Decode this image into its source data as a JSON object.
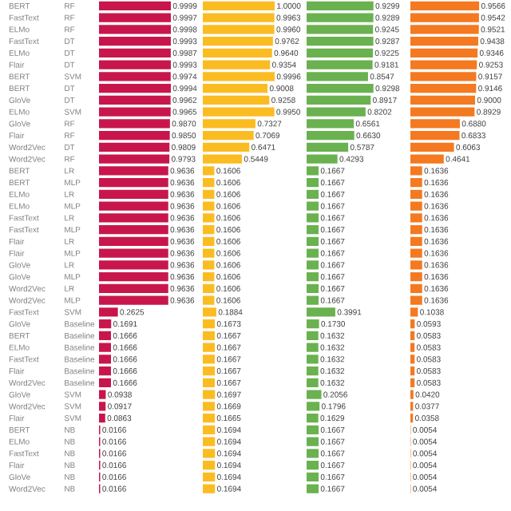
{
  "chart_data": [
    {
      "type": "bar",
      "orientation": "horizontal",
      "color": "#c8164c",
      "xlim": [
        0,
        1
      ],
      "categories": [
        "BERT",
        "FastText",
        "ELMo",
        "FastText",
        "ELMo",
        "Flair",
        "BERT",
        "BERT",
        "GloVe",
        "ELMo",
        "GloVe",
        "Flair",
        "Word2Vec",
        "Word2Vec",
        "BERT",
        "BERT",
        "ELMo",
        "ELMo",
        "FastText",
        "FastText",
        "Flair",
        "Flair",
        "GloVe",
        "GloVe",
        "Word2Vec",
        "Word2Vec",
        "FastText",
        "GloVe",
        "BERT",
        "ELMo",
        "FastText",
        "Flair",
        "Word2Vec",
        "GloVe",
        "Word2Vec",
        "Flair",
        "BERT",
        "ELMo",
        "FastText",
        "Flair",
        "GloVe",
        "Word2Vec"
      ],
      "annotations": [
        "RF",
        "RF",
        "RF",
        "DT",
        "DT",
        "DT",
        "SVM",
        "DT",
        "DT",
        "SVM",
        "RF",
        "RF",
        "DT",
        "RF",
        "LR",
        "MLP",
        "LR",
        "MLP",
        "LR",
        "MLP",
        "LR",
        "MLP",
        "LR",
        "MLP",
        "LR",
        "MLP",
        "SVM",
        "Baseline",
        "Baseline",
        "Baseline",
        "Baseline",
        "Baseline",
        "Baseline",
        "SVM",
        "SVM",
        "SVM",
        "NB",
        "NB",
        "NB",
        "NB",
        "NB",
        "NB"
      ],
      "values": [
        0.9999,
        0.9997,
        0.9998,
        0.9993,
        0.9987,
        0.9993,
        0.9974,
        0.9994,
        0.9962,
        0.9965,
        0.987,
        0.985,
        0.9809,
        0.9793,
        0.9636,
        0.9636,
        0.9636,
        0.9636,
        0.9636,
        0.9636,
        0.9636,
        0.9636,
        0.9636,
        0.9636,
        0.9636,
        0.9636,
        0.2625,
        0.1691,
        0.1666,
        0.1666,
        0.1666,
        0.1666,
        0.1666,
        0.0938,
        0.0917,
        0.0863,
        0.0166,
        0.0166,
        0.0166,
        0.0166,
        0.0166,
        0.0166
      ],
      "value_labels": [
        "0.9999",
        "0.9997",
        "0.9998",
        "0.9993",
        "0.9987",
        "0.9993",
        "0.9974",
        "0.9994",
        "0.9962",
        "0.9965",
        "0.9870",
        "0.9850",
        "0.9809",
        "0.9793",
        "0.9636",
        "0.9636",
        "0.9636",
        "0.9636",
        "0.9636",
        "0.9636",
        "0.9636",
        "0.9636",
        "0.9636",
        "0.9636",
        "0.9636",
        "0.9636",
        "0.2625",
        "0.1691",
        "0.1666",
        "0.1666",
        "0.1666",
        "0.1666",
        "0.1666",
        "0.0938",
        "0.0917",
        "0.0863",
        "0.0166",
        "0.0166",
        "0.0166",
        "0.0166",
        "0.0166",
        "0.0166"
      ]
    },
    {
      "type": "bar",
      "orientation": "horizontal",
      "color": "#fbbc22",
      "xlim": [
        0,
        1
      ],
      "categories": [
        null,
        null,
        null,
        null,
        null,
        null,
        null,
        null,
        null,
        null,
        null,
        null,
        null,
        null,
        null,
        null,
        null,
        null,
        null,
        null,
        null,
        null,
        null,
        null,
        null,
        null,
        null,
        null,
        null,
        null,
        null,
        null,
        null,
        null,
        null,
        null,
        null,
        null,
        null,
        null,
        null,
        null
      ],
      "values": [
        1.0,
        0.9963,
        0.996,
        0.9762,
        0.964,
        0.9354,
        0.9996,
        0.9008,
        0.9258,
        0.995,
        0.7327,
        0.7069,
        0.6471,
        0.5449,
        0.1606,
        0.1606,
        0.1606,
        0.1606,
        0.1606,
        0.1606,
        0.1606,
        0.1606,
        0.1606,
        0.1606,
        0.1606,
        0.1606,
        0.1884,
        0.1673,
        0.1667,
        0.1667,
        0.1667,
        0.1667,
        0.1667,
        0.1697,
        0.1669,
        0.1665,
        0.1694,
        0.1694,
        0.1694,
        0.1694,
        0.1694,
        0.1694
      ],
      "value_labels": [
        "1.0000",
        "0.9963",
        "0.9960",
        "0.9762",
        "0.9640",
        "0.9354",
        "0.9996",
        "0.9008",
        "0.9258",
        "0.9950",
        "0.7327",
        "0.7069",
        "0.6471",
        "0.5449",
        "0.1606",
        "0.1606",
        "0.1606",
        "0.1606",
        "0.1606",
        "0.1606",
        "0.1606",
        "0.1606",
        "0.1606",
        "0.1606",
        "0.1606",
        "0.1606",
        "0.1884",
        "0.1673",
        "0.1667",
        "0.1667",
        "0.1667",
        "0.1667",
        "0.1667",
        "0.1697",
        "0.1669",
        "0.1665",
        "0.1694",
        "0.1694",
        "0.1694",
        "0.1694",
        "0.1694",
        "0.1694"
      ]
    },
    {
      "type": "bar",
      "orientation": "horizontal",
      "color": "#6ab150",
      "xlim": [
        0,
        1
      ],
      "categories": [
        null,
        null,
        null,
        null,
        null,
        null,
        null,
        null,
        null,
        null,
        null,
        null,
        null,
        null,
        null,
        null,
        null,
        null,
        null,
        null,
        null,
        null,
        null,
        null,
        null,
        null,
        null,
        null,
        null,
        null,
        null,
        null,
        null,
        null,
        null,
        null,
        null,
        null,
        null,
        null,
        null,
        null
      ],
      "values": [
        0.9299,
        0.9289,
        0.9245,
        0.9287,
        0.9225,
        0.9181,
        0.8547,
        0.9298,
        0.8917,
        0.8202,
        0.6561,
        0.663,
        0.5787,
        0.4293,
        0.1667,
        0.1667,
        0.1667,
        0.1667,
        0.1667,
        0.1667,
        0.1667,
        0.1667,
        0.1667,
        0.1667,
        0.1667,
        0.1667,
        0.3991,
        0.173,
        0.1632,
        0.1632,
        0.1632,
        0.1632,
        0.1632,
        0.2056,
        0.1796,
        0.1629,
        0.1667,
        0.1667,
        0.1667,
        0.1667,
        0.1667,
        0.1667
      ],
      "value_labels": [
        "0.9299",
        "0.9289",
        "0.9245",
        "0.9287",
        "0.9225",
        "0.9181",
        "0.8547",
        "0.9298",
        "0.8917",
        "0.8202",
        "0.6561",
        "0.6630",
        "0.5787",
        "0.4293",
        "0.1667",
        "0.1667",
        "0.1667",
        "0.1667",
        "0.1667",
        "0.1667",
        "0.1667",
        "0.1667",
        "0.1667",
        "0.1667",
        "0.1667",
        "0.1667",
        "0.3991",
        "0.1730",
        "0.1632",
        "0.1632",
        "0.1632",
        "0.1632",
        "0.1632",
        "0.2056",
        "0.1796",
        "0.1629",
        "0.1667",
        "0.1667",
        "0.1667",
        "0.1667",
        "0.1667",
        "0.1667"
      ]
    },
    {
      "type": "bar",
      "orientation": "horizontal",
      "color": "#f47920",
      "xlim": [
        0,
        1
      ],
      "categories": [
        null,
        null,
        null,
        null,
        null,
        null,
        null,
        null,
        null,
        null,
        null,
        null,
        null,
        null,
        null,
        null,
        null,
        null,
        null,
        null,
        null,
        null,
        null,
        null,
        null,
        null,
        null,
        null,
        null,
        null,
        null,
        null,
        null,
        null,
        null,
        null,
        null,
        null,
        null,
        null,
        null,
        null
      ],
      "values": [
        0.9566,
        0.9542,
        0.9521,
        0.9438,
        0.9346,
        0.9253,
        0.9157,
        0.9146,
        0.9,
        0.8929,
        0.688,
        0.6833,
        0.6063,
        0.4641,
        0.1636,
        0.1636,
        0.1636,
        0.1636,
        0.1636,
        0.1636,
        0.1636,
        0.1636,
        0.1636,
        0.1636,
        0.1636,
        0.1636,
        0.1038,
        0.0593,
        0.0583,
        0.0583,
        0.0583,
        0.0583,
        0.0583,
        0.042,
        0.0377,
        0.0358,
        0.0054,
        0.0054,
        0.0054,
        0.0054,
        0.0054,
        0.0054
      ],
      "value_labels": [
        "0.9566",
        "0.9542",
        "0.9521",
        "0.9438",
        "0.9346",
        "0.9253",
        "0.9157",
        "0.9146",
        "0.9000",
        "0.8929",
        "0.6880",
        "0.6833",
        "0.6063",
        "0.4641",
        "0.1636",
        "0.1636",
        "0.1636",
        "0.1636",
        "0.1636",
        "0.1636",
        "0.1636",
        "0.1636",
        "0.1636",
        "0.1636",
        "0.1636",
        "0.1636",
        "0.1038",
        "0.0593",
        "0.0583",
        "0.0583",
        "0.0583",
        "0.0583",
        "0.0583",
        "0.0420",
        "0.0377",
        "0.0358",
        "0.0054",
        "0.0054",
        "0.0054",
        "0.0054",
        "0.0054",
        "0.0054"
      ]
    }
  ]
}
